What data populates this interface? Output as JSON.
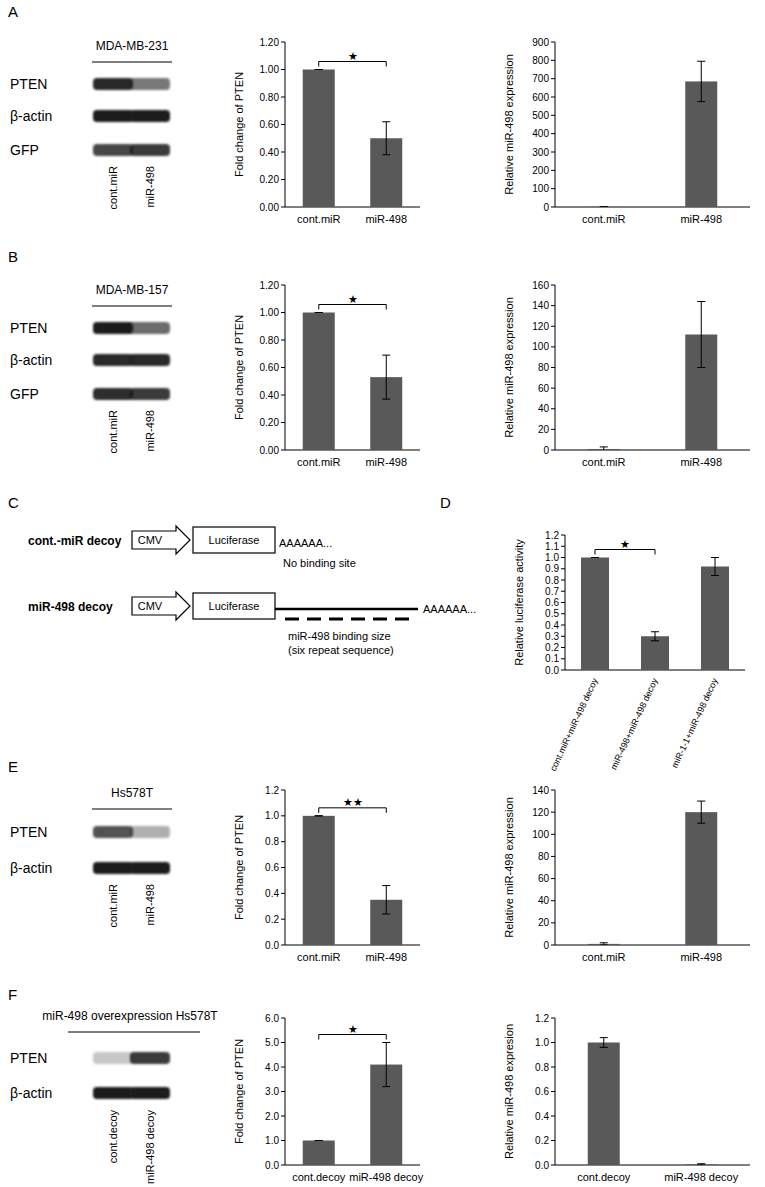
{
  "chart_data": [
    {
      "type": "bar",
      "categories": [
        "cont.miR",
        "miR-498"
      ],
      "values": [
        1.0,
        0.5
      ],
      "errors": [
        0,
        0.12
      ],
      "color": "#595959",
      "ylabel": "Fold change of PTEN",
      "ylim": [
        0,
        1.2
      ],
      "yticks": [
        {
          "value": 0,
          "label": "0.00"
        },
        {
          "value": 0.2,
          "label": "0.20"
        },
        {
          "value": 0.4,
          "label": "0.40"
        },
        {
          "value": 0.6,
          "label": "0.60"
        },
        {
          "value": 0.8,
          "label": "0.80"
        },
        {
          "value": 1.0,
          "label": "1.00"
        },
        {
          "value": 1.2,
          "label": "1.20"
        }
      ],
      "significance": "★"
    },
    {
      "type": "bar",
      "categories": [
        "cont.miR",
        "miR-498"
      ],
      "values": [
        1,
        685
      ],
      "errors": [
        0.5,
        110
      ],
      "color": "#595959",
      "ylabel": "Relative miR-498 expression",
      "ylim": [
        0,
        900
      ],
      "yticks": [
        0,
        100,
        200,
        300,
        400,
        500,
        600,
        700,
        800,
        900
      ]
    },
    {
      "type": "bar",
      "categories": [
        "cont.miR",
        "miR-498"
      ],
      "values": [
        1.0,
        0.53
      ],
      "errors": [
        0,
        0.16
      ],
      "color": "#595959",
      "ylabel": "Fold change of PTEN",
      "ylim": [
        0,
        1.2
      ],
      "yticks": [
        {
          "value": 0,
          "label": "0.00"
        },
        {
          "value": 0.2,
          "label": "0.20"
        },
        {
          "value": 0.4,
          "label": "0.40"
        },
        {
          "value": 0.6,
          "label": "0.60"
        },
        {
          "value": 0.8,
          "label": "0.80"
        },
        {
          "value": 1.0,
          "label": "1.00"
        },
        {
          "value": 1.2,
          "label": "1.20"
        }
      ],
      "significance": "★"
    },
    {
      "type": "bar",
      "categories": [
        "cont.miR",
        "miR-498"
      ],
      "values": [
        1,
        112
      ],
      "errors": [
        2,
        32
      ],
      "color": "#595959",
      "ylabel": "Relative miR-498 expression",
      "ylim": [
        0,
        160
      ],
      "yticks": [
        0,
        20,
        40,
        60,
        80,
        100,
        120,
        140,
        160
      ]
    },
    {
      "type": "bar",
      "categories": [
        "cont.miR+miR-498 decoy",
        "miR-498+miR-498 decoy",
        "miR-1-1+miR-498 decoy"
      ],
      "values": [
        1.0,
        0.3,
        0.92
      ],
      "errors": [
        0,
        0.04,
        0.08
      ],
      "color": "#595959",
      "ylabel": "Relative luciferase activity",
      "ylim": [
        0,
        1.2
      ],
      "yticks": [
        {
          "value": 0,
          "label": "0.0"
        },
        {
          "value": 0.1,
          "label": "0.1"
        },
        {
          "value": 0.2,
          "label": "0.2"
        },
        {
          "value": 0.3,
          "label": "0.3"
        },
        {
          "value": 0.4,
          "label": "0.4"
        },
        {
          "value": 0.5,
          "label": "0.5"
        },
        {
          "value": 0.6,
          "label": "0.6"
        },
        {
          "value": 0.7,
          "label": "0.7"
        },
        {
          "value": 0.8,
          "label": "0.8"
        },
        {
          "value": 0.9,
          "label": "0.9"
        },
        {
          "value": 1.0,
          "label": "1.0"
        },
        {
          "value": 1.1,
          "label": "1.1"
        },
        {
          "value": 1.2,
          "label": "1.2"
        }
      ],
      "significance": "★"
    },
    {
      "type": "bar",
      "categories": [
        "cont.miR",
        "miR-498"
      ],
      "values": [
        1.0,
        0.35
      ],
      "errors": [
        0,
        0.11
      ],
      "color": "#595959",
      "ylabel": "Fold change of PTEN",
      "ylim": [
        0,
        1.2
      ],
      "yticks": [
        {
          "value": 0,
          "label": "0.0"
        },
        {
          "value": 0.2,
          "label": "0.2"
        },
        {
          "value": 0.4,
          "label": "0.4"
        },
        {
          "value": 0.6,
          "label": "0.6"
        },
        {
          "value": 0.8,
          "label": "0.8"
        },
        {
          "value": 1.0,
          "label": "1.0"
        },
        {
          "value": 1.2,
          "label": "1.2"
        }
      ],
      "significance": "★★"
    },
    {
      "type": "bar",
      "categories": [
        "cont.miR",
        "miR-498"
      ],
      "values": [
        1,
        120
      ],
      "errors": [
        1,
        10
      ],
      "color": "#595959",
      "ylabel": "Relative miR-498 expression",
      "ylim": [
        0,
        140
      ],
      "yticks": [
        0,
        20,
        40,
        60,
        80,
        100,
        120,
        140
      ]
    },
    {
      "type": "bar",
      "categories": [
        "cont.decoy",
        "miR-498 decoy"
      ],
      "values": [
        1.0,
        4.1
      ],
      "errors": [
        0,
        0.9
      ],
      "color": "#595959",
      "ylabel": "Fold change of PTEN",
      "ylim": [
        0,
        6
      ],
      "yticks": [
        {
          "value": 0,
          "label": "0.0"
        },
        {
          "value": 1,
          "label": "1.0"
        },
        {
          "value": 2,
          "label": "2.0"
        },
        {
          "value": 3,
          "label": "3.0"
        },
        {
          "value": 4,
          "label": "4.0"
        },
        {
          "value": 5,
          "label": "5.0"
        },
        {
          "value": 6,
          "label": "6.0"
        }
      ],
      "significance": "★"
    },
    {
      "type": "bar",
      "categories": [
        "cont.decoy",
        "miR-498 decoy"
      ],
      "values": [
        1.0,
        0.005
      ],
      "errors": [
        0.04,
        0.005
      ],
      "color": "#595959",
      "ylabel": "Relative miR-498 expresion",
      "ylim": [
        0,
        1.2
      ],
      "yticks": [
        {
          "value": 0,
          "label": "0.0"
        },
        {
          "value": 0.2,
          "label": "0.2"
        },
        {
          "value": 0.4,
          "label": "0.4"
        },
        {
          "value": 0.6,
          "label": "0.6"
        },
        {
          "value": 0.8,
          "label": "0.8"
        },
        {
          "value": 1.0,
          "label": "1.0"
        },
        {
          "value": 1.2,
          "label": "1.2"
        }
      ]
    }
  ],
  "figure": {
    "panels": [
      "A",
      "B",
      "C",
      "D",
      "E",
      "F"
    ],
    "blots": [
      {
        "title": "MDA-MB-231",
        "lanes": [
          "cont.miR",
          "miR-498"
        ],
        "rows": [
          {
            "label": "PTEN",
            "bands": [
              0.95,
              0.6
            ]
          },
          {
            "label": "β-actin",
            "bands": [
              1,
              1
            ]
          },
          {
            "label": "GFP",
            "bands": [
              0.8,
              0.85
            ]
          }
        ]
      },
      {
        "title": "MDA-MB-157",
        "lanes": [
          "cont.miR",
          "miR-498"
        ],
        "rows": [
          {
            "label": "PTEN",
            "bands": [
              1,
              0.65
            ]
          },
          {
            "label": "β-actin",
            "bands": [
              0.95,
              0.95
            ]
          },
          {
            "label": "GFP",
            "bands": [
              0.9,
              0.85
            ]
          }
        ]
      },
      {
        "title": "Hs578T",
        "lanes": [
          "cont.miR",
          "miR-498"
        ],
        "rows": [
          {
            "label": "PTEN",
            "bands": [
              0.75,
              0.35
            ]
          },
          {
            "label": "β-actin",
            "bands": [
              1,
              1
            ]
          }
        ]
      },
      {
        "title": "miR-498 overexpression Hs578T",
        "lanes": [
          "cont.decoy",
          "miR-498 decoy"
        ],
        "rows": [
          {
            "label": "PTEN",
            "bands": [
              0.25,
              0.85
            ]
          },
          {
            "label": "β-actin",
            "bands": [
              1,
              1
            ]
          }
        ]
      }
    ],
    "diagram": {
      "constructs": [
        {
          "name": "cont.-miR decoy",
          "promoter": "CMV",
          "gene": "Luciferase",
          "tail": "AAAAAA...",
          "note": [
            "No binding site"
          ]
        },
        {
          "name": "miR-498 decoy",
          "promoter": "CMV",
          "gene": "Luciferase",
          "tail": "AAAAAA...",
          "note": [
            "miR-498 binding size",
            "(six repeat sequence)"
          ]
        }
      ]
    }
  }
}
